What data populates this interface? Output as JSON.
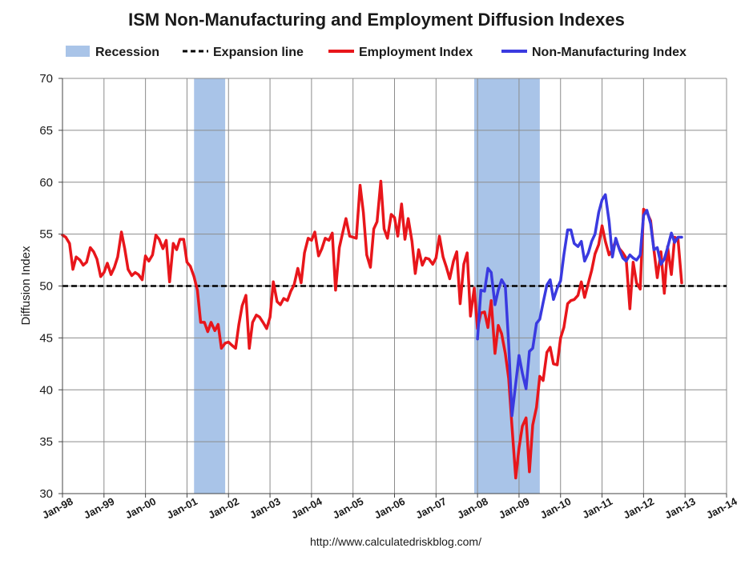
{
  "chart_data": {
    "type": "line",
    "title": "ISM Non-Manufacturing and Employment Diffusion Indexes",
    "xlabel": "",
    "ylabel": "Diffusion Index",
    "ylim": [
      30,
      70
    ],
    "yticks": [
      30,
      35,
      40,
      45,
      50,
      55,
      60,
      65,
      70
    ],
    "xlim": [
      1998.0,
      2014.0
    ],
    "xticks": [
      {
        "x": 1998,
        "label": "Jan-98"
      },
      {
        "x": 1999,
        "label": "Jan-99"
      },
      {
        "x": 2000,
        "label": "Jan-00"
      },
      {
        "x": 2001,
        "label": "Jan-01"
      },
      {
        "x": 2002,
        "label": "Jan-02"
      },
      {
        "x": 2003,
        "label": "Jan-03"
      },
      {
        "x": 2004,
        "label": "Jan-04"
      },
      {
        "x": 2005,
        "label": "Jan-05"
      },
      {
        "x": 2006,
        "label": "Jan-06"
      },
      {
        "x": 2007,
        "label": "Jan-07"
      },
      {
        "x": 2008,
        "label": "Jan-08"
      },
      {
        "x": 2009,
        "label": "Jan-09"
      },
      {
        "x": 2010,
        "label": "Jan-10"
      },
      {
        "x": 2011,
        "label": "Jan-11"
      },
      {
        "x": 2012,
        "label": "Jan-12"
      },
      {
        "x": 2013,
        "label": "Jan-13"
      },
      {
        "x": 2014,
        "label": "Jan-14"
      }
    ],
    "grid": true,
    "legend_position": "top",
    "legend": [
      {
        "label": "Recession",
        "kind": "band",
        "color": "#a9c4e8"
      },
      {
        "label": "Expansion line",
        "kind": "dashed",
        "color": "#000000"
      },
      {
        "label": "Employment Index",
        "kind": "line",
        "color": "#e8161b"
      },
      {
        "label": "Non-Manufacturing Index",
        "kind": "line",
        "color": "#3a3ae0"
      }
    ],
    "recessions": [
      [
        2001.17,
        2001.92
      ],
      [
        2007.92,
        2009.5
      ]
    ],
    "expansion_line": 50,
    "series": [
      {
        "name": "Employment Index",
        "color": "#e8161b",
        "points": [
          [
            1998.0,
            54.9
          ],
          [
            1998.08,
            54.7
          ],
          [
            1998.17,
            54.1
          ],
          [
            1998.25,
            51.6
          ],
          [
            1998.33,
            52.8
          ],
          [
            1998.42,
            52.5
          ],
          [
            1998.5,
            52.0
          ],
          [
            1998.58,
            52.3
          ],
          [
            1998.67,
            53.7
          ],
          [
            1998.75,
            53.3
          ],
          [
            1998.83,
            52.6
          ],
          [
            1998.92,
            50.9
          ],
          [
            1999.0,
            51.3
          ],
          [
            1999.08,
            52.2
          ],
          [
            1999.17,
            51.1
          ],
          [
            1999.25,
            51.8
          ],
          [
            1999.33,
            52.8
          ],
          [
            1999.42,
            55.2
          ],
          [
            1999.5,
            53.6
          ],
          [
            1999.58,
            51.6
          ],
          [
            1999.67,
            51.0
          ],
          [
            1999.75,
            51.3
          ],
          [
            1999.83,
            51.1
          ],
          [
            1999.92,
            50.6
          ],
          [
            2000.0,
            52.9
          ],
          [
            2000.08,
            52.4
          ],
          [
            2000.17,
            53.0
          ],
          [
            2000.25,
            54.9
          ],
          [
            2000.33,
            54.5
          ],
          [
            2000.42,
            53.6
          ],
          [
            2000.5,
            54.4
          ],
          [
            2000.58,
            50.4
          ],
          [
            2000.67,
            54.1
          ],
          [
            2000.75,
            53.5
          ],
          [
            2000.83,
            54.5
          ],
          [
            2000.92,
            54.5
          ],
          [
            2001.0,
            52.3
          ],
          [
            2001.08,
            51.9
          ],
          [
            2001.17,
            50.9
          ],
          [
            2001.25,
            49.6
          ],
          [
            2001.33,
            46.5
          ],
          [
            2001.42,
            46.5
          ],
          [
            2001.5,
            45.6
          ],
          [
            2001.58,
            46.5
          ],
          [
            2001.67,
            45.7
          ],
          [
            2001.75,
            46.3
          ],
          [
            2001.83,
            44.0
          ],
          [
            2001.92,
            44.5
          ],
          [
            2002.0,
            44.6
          ],
          [
            2002.08,
            44.3
          ],
          [
            2002.17,
            44.0
          ],
          [
            2002.25,
            46.3
          ],
          [
            2002.33,
            48.1
          ],
          [
            2002.42,
            49.1
          ],
          [
            2002.5,
            44.0
          ],
          [
            2002.58,
            46.5
          ],
          [
            2002.67,
            47.2
          ],
          [
            2002.75,
            47.0
          ],
          [
            2002.83,
            46.5
          ],
          [
            2002.92,
            45.9
          ],
          [
            2003.0,
            47.0
          ],
          [
            2003.08,
            50.4
          ],
          [
            2003.17,
            48.5
          ],
          [
            2003.25,
            48.2
          ],
          [
            2003.33,
            48.8
          ],
          [
            2003.42,
            48.6
          ],
          [
            2003.5,
            49.5
          ],
          [
            2003.58,
            50.1
          ],
          [
            2003.67,
            51.7
          ],
          [
            2003.75,
            50.3
          ],
          [
            2003.83,
            53.2
          ],
          [
            2003.92,
            54.6
          ],
          [
            2004.0,
            54.4
          ],
          [
            2004.08,
            55.2
          ],
          [
            2004.17,
            52.9
          ],
          [
            2004.25,
            53.6
          ],
          [
            2004.33,
            54.6
          ],
          [
            2004.42,
            54.4
          ],
          [
            2004.5,
            55.1
          ],
          [
            2004.58,
            49.6
          ],
          [
            2004.67,
            53.7
          ],
          [
            2004.75,
            55.1
          ],
          [
            2004.83,
            56.5
          ],
          [
            2004.92,
            54.8
          ],
          [
            2005.0,
            54.7
          ],
          [
            2005.08,
            54.6
          ],
          [
            2005.17,
            59.7
          ],
          [
            2005.25,
            57.1
          ],
          [
            2005.33,
            53.0
          ],
          [
            2005.42,
            51.8
          ],
          [
            2005.5,
            55.5
          ],
          [
            2005.58,
            56.2
          ],
          [
            2005.67,
            60.1
          ],
          [
            2005.75,
            55.5
          ],
          [
            2005.83,
            54.6
          ],
          [
            2005.92,
            56.9
          ],
          [
            2006.0,
            56.6
          ],
          [
            2006.08,
            54.8
          ],
          [
            2006.17,
            57.9
          ],
          [
            2006.25,
            54.5
          ],
          [
            2006.33,
            56.5
          ],
          [
            2006.42,
            54.3
          ],
          [
            2006.5,
            51.2
          ],
          [
            2006.58,
            53.5
          ],
          [
            2006.67,
            52.0
          ],
          [
            2006.75,
            52.7
          ],
          [
            2006.83,
            52.6
          ],
          [
            2006.92,
            52.1
          ],
          [
            2007.0,
            52.7
          ],
          [
            2007.08,
            54.8
          ],
          [
            2007.17,
            52.8
          ],
          [
            2007.25,
            51.8
          ],
          [
            2007.33,
            50.7
          ],
          [
            2007.42,
            52.4
          ],
          [
            2007.5,
            53.3
          ],
          [
            2007.58,
            48.3
          ],
          [
            2007.67,
            52.1
          ],
          [
            2007.75,
            53.2
          ],
          [
            2007.83,
            47.1
          ],
          [
            2007.92,
            49.8
          ],
          [
            2008.0,
            45.9
          ],
          [
            2008.08,
            47.4
          ],
          [
            2008.17,
            47.5
          ],
          [
            2008.25,
            46.0
          ],
          [
            2008.33,
            48.6
          ],
          [
            2008.42,
            43.5
          ],
          [
            2008.5,
            46.2
          ],
          [
            2008.58,
            45.4
          ],
          [
            2008.67,
            43.5
          ],
          [
            2008.75,
            41.1
          ],
          [
            2008.83,
            36.5
          ],
          [
            2008.92,
            31.5
          ],
          [
            2009.0,
            34.4
          ],
          [
            2009.08,
            36.5
          ],
          [
            2009.17,
            37.3
          ],
          [
            2009.25,
            32.1
          ],
          [
            2009.33,
            36.6
          ],
          [
            2009.42,
            38.3
          ],
          [
            2009.5,
            41.3
          ],
          [
            2009.58,
            40.9
          ],
          [
            2009.67,
            43.6
          ],
          [
            2009.75,
            44.1
          ],
          [
            2009.83,
            42.5
          ],
          [
            2009.92,
            42.4
          ],
          [
            2010.0,
            45.0
          ],
          [
            2010.08,
            46.0
          ],
          [
            2010.17,
            48.3
          ],
          [
            2010.25,
            48.6
          ],
          [
            2010.33,
            48.7
          ],
          [
            2010.42,
            49.1
          ],
          [
            2010.5,
            50.4
          ],
          [
            2010.58,
            48.9
          ],
          [
            2010.67,
            50.3
          ],
          [
            2010.75,
            51.5
          ],
          [
            2010.83,
            53.1
          ],
          [
            2010.92,
            54.0
          ],
          [
            2011.0,
            55.8
          ],
          [
            2011.08,
            54.3
          ],
          [
            2011.17,
            53.0
          ],
          [
            2011.25,
            53.5
          ],
          [
            2011.33,
            54.4
          ],
          [
            2011.42,
            53.6
          ],
          [
            2011.5,
            53.2
          ],
          [
            2011.58,
            52.7
          ],
          [
            2011.67,
            47.8
          ],
          [
            2011.75,
            52.3
          ],
          [
            2011.83,
            50.3
          ],
          [
            2011.92,
            49.7
          ],
          [
            2012.0,
            57.4
          ],
          [
            2012.08,
            57.1
          ],
          [
            2012.17,
            56.3
          ],
          [
            2012.25,
            53.5
          ],
          [
            2012.33,
            50.8
          ],
          [
            2012.42,
            53.3
          ],
          [
            2012.5,
            49.3
          ],
          [
            2012.58,
            53.8
          ],
          [
            2012.67,
            51.1
          ],
          [
            2012.75,
            54.7
          ],
          [
            2012.83,
            54.5
          ],
          [
            2012.92,
            50.3
          ]
        ]
      },
      {
        "name": "Non-Manufacturing Index",
        "color": "#3a3ae0",
        "points": [
          [
            2008.0,
            44.9
          ],
          [
            2008.08,
            49.6
          ],
          [
            2008.17,
            49.5
          ],
          [
            2008.25,
            51.7
          ],
          [
            2008.33,
            51.3
          ],
          [
            2008.42,
            48.2
          ],
          [
            2008.5,
            49.6
          ],
          [
            2008.58,
            50.6
          ],
          [
            2008.67,
            50.0
          ],
          [
            2008.75,
            44.4
          ],
          [
            2008.83,
            37.5
          ],
          [
            2008.92,
            40.6
          ],
          [
            2009.0,
            43.3
          ],
          [
            2009.08,
            41.6
          ],
          [
            2009.17,
            40.1
          ],
          [
            2009.25,
            43.7
          ],
          [
            2009.33,
            44.0
          ],
          [
            2009.42,
            46.4
          ],
          [
            2009.5,
            46.8
          ],
          [
            2009.58,
            48.4
          ],
          [
            2009.67,
            50.1
          ],
          [
            2009.75,
            50.6
          ],
          [
            2009.83,
            48.7
          ],
          [
            2009.92,
            49.8
          ],
          [
            2010.0,
            50.5
          ],
          [
            2010.08,
            53.0
          ],
          [
            2010.17,
            55.4
          ],
          [
            2010.25,
            55.4
          ],
          [
            2010.33,
            54.1
          ],
          [
            2010.42,
            53.8
          ],
          [
            2010.5,
            54.3
          ],
          [
            2010.58,
            52.4
          ],
          [
            2010.67,
            53.2
          ],
          [
            2010.75,
            54.3
          ],
          [
            2010.83,
            55.0
          ],
          [
            2010.92,
            57.1
          ],
          [
            2011.0,
            58.3
          ],
          [
            2011.08,
            58.8
          ],
          [
            2011.17,
            56.2
          ],
          [
            2011.25,
            52.8
          ],
          [
            2011.33,
            54.6
          ],
          [
            2011.42,
            53.5
          ],
          [
            2011.5,
            52.7
          ],
          [
            2011.58,
            52.4
          ],
          [
            2011.67,
            53.0
          ],
          [
            2011.75,
            52.7
          ],
          [
            2011.83,
            52.5
          ],
          [
            2011.92,
            53.0
          ],
          [
            2012.0,
            56.8
          ],
          [
            2012.08,
            57.3
          ],
          [
            2012.17,
            56.0
          ],
          [
            2012.25,
            53.5
          ],
          [
            2012.33,
            53.7
          ],
          [
            2012.42,
            52.1
          ],
          [
            2012.5,
            52.6
          ],
          [
            2012.58,
            53.7
          ],
          [
            2012.67,
            55.1
          ],
          [
            2012.75,
            54.2
          ],
          [
            2012.83,
            54.7
          ],
          [
            2012.92,
            54.7
          ]
        ]
      }
    ],
    "source": "http://www.calculatedriskblog.com/"
  }
}
